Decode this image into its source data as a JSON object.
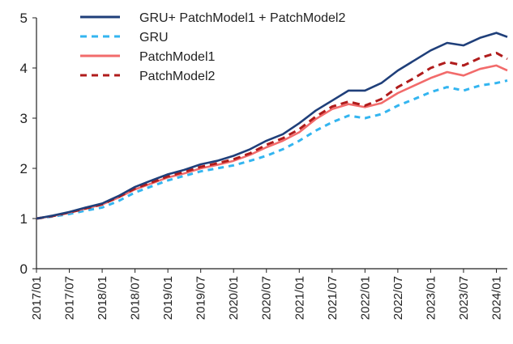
{
  "chart_data": {
    "type": "line",
    "title": "",
    "xlabel": "",
    "ylabel": "",
    "ylim": [
      0,
      5
    ],
    "yticks": [
      "0",
      "1",
      "2",
      "3",
      "4",
      "5"
    ],
    "x_tick_labels": [
      "2017/01",
      "2017/07",
      "2018/01",
      "2018/07",
      "2019/01",
      "2019/07",
      "2020/01",
      "2020/07",
      "2021/01",
      "2021/07",
      "2022/01",
      "2022/07",
      "2023/01",
      "2023/07",
      "2024/01"
    ],
    "grid": false,
    "legend_position": "top-left",
    "x": [
      "2017/01",
      "2017/04",
      "2017/07",
      "2017/10",
      "2018/01",
      "2018/04",
      "2018/07",
      "2018/10",
      "2019/01",
      "2019/04",
      "2019/07",
      "2019/10",
      "2020/01",
      "2020/04",
      "2020/07",
      "2020/10",
      "2021/01",
      "2021/04",
      "2021/07",
      "2021/10",
      "2022/01",
      "2022/04",
      "2022/07",
      "2022/10",
      "2023/01",
      "2023/04",
      "2023/07",
      "2023/10",
      "2024/01",
      "2024/03"
    ],
    "series": [
      {
        "name": "GRU+ PatchModel1 + PatchModel2",
        "color": "#1f3f7a",
        "style": "solid",
        "values": [
          1.0,
          1.06,
          1.13,
          1.22,
          1.3,
          1.45,
          1.63,
          1.76,
          1.88,
          1.97,
          2.08,
          2.15,
          2.25,
          2.38,
          2.55,
          2.68,
          2.9,
          3.15,
          3.35,
          3.55,
          3.55,
          3.7,
          3.95,
          4.15,
          4.35,
          4.5,
          4.45,
          4.6,
          4.7,
          4.62
        ]
      },
      {
        "name": "GRU",
        "color": "#33b5f0",
        "style": "dashed",
        "values": [
          1.0,
          1.04,
          1.09,
          1.16,
          1.22,
          1.35,
          1.52,
          1.64,
          1.76,
          1.85,
          1.94,
          2.0,
          2.06,
          2.15,
          2.25,
          2.38,
          2.55,
          2.75,
          2.92,
          3.05,
          3.0,
          3.08,
          3.25,
          3.38,
          3.52,
          3.62,
          3.55,
          3.65,
          3.7,
          3.75
        ]
      },
      {
        "name": "PatchModel1",
        "color": "#f26b6b",
        "style": "solid",
        "values": [
          1.0,
          1.05,
          1.12,
          1.2,
          1.28,
          1.42,
          1.58,
          1.7,
          1.82,
          1.9,
          2.0,
          2.07,
          2.15,
          2.27,
          2.42,
          2.55,
          2.72,
          2.98,
          3.18,
          3.28,
          3.22,
          3.3,
          3.5,
          3.65,
          3.8,
          3.92,
          3.85,
          3.98,
          4.05,
          3.95
        ]
      },
      {
        "name": "PatchModel2",
        "color": "#b01c1c",
        "style": "dashed",
        "values": [
          1.0,
          1.05,
          1.12,
          1.2,
          1.28,
          1.43,
          1.6,
          1.72,
          1.84,
          1.93,
          2.03,
          2.1,
          2.18,
          2.3,
          2.47,
          2.6,
          2.78,
          3.03,
          3.23,
          3.33,
          3.25,
          3.38,
          3.62,
          3.8,
          4.0,
          4.12,
          4.05,
          4.2,
          4.3,
          4.18
        ]
      }
    ]
  }
}
